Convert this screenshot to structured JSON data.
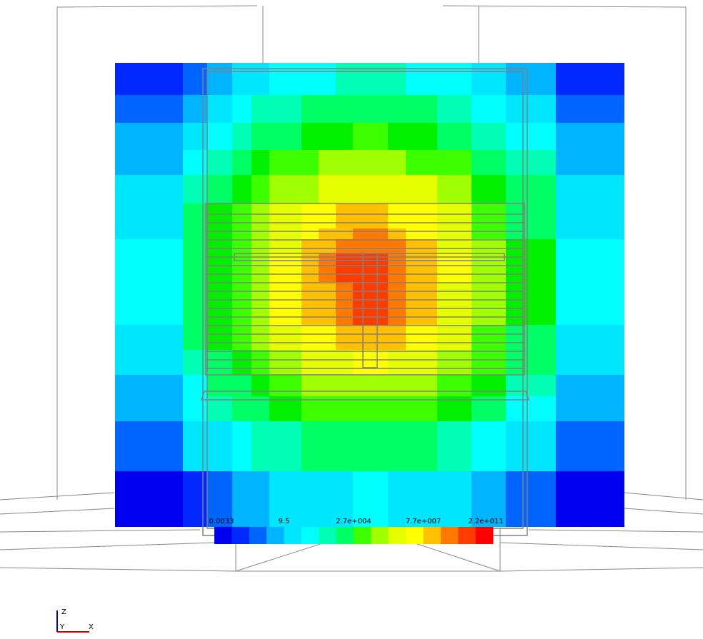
{
  "colorbar": {
    "labels": [
      "0.0033",
      "9.5",
      "2.7e+004",
      "7.7e+007",
      "2.2e+011"
    ]
  },
  "axes": {
    "z": "Z",
    "y": "Y",
    "x": "X"
  }
}
